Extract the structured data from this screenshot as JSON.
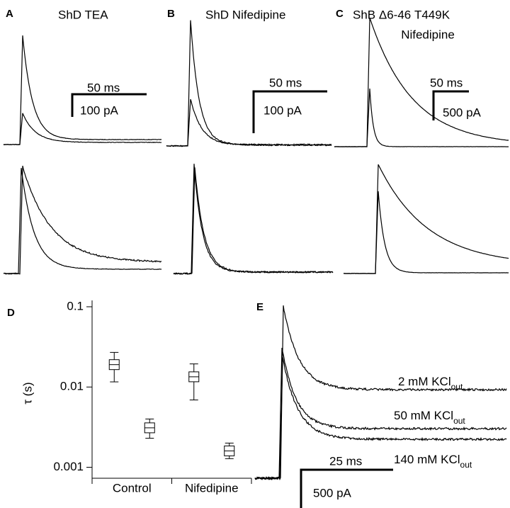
{
  "panels": {
    "a": {
      "label": "A",
      "title": "ShD TEA",
      "scale_time": "50 ms",
      "scale_current": "100 pA"
    },
    "b": {
      "label": "B",
      "title": "ShD Nifedipine",
      "scale_time": "50 ms",
      "scale_current": "100 pA"
    },
    "c": {
      "label": "C",
      "title": "ShB Δ6-46 T449K",
      "title2": "Nifedipine",
      "scale_time": "50 ms",
      "scale_current": "500 pA"
    },
    "e": {
      "label": "E",
      "scale_time": "25 ms",
      "scale_current": "500 pA",
      "traces": [
        {
          "label": "2 mM KCl",
          "subscript": "out"
        },
        {
          "label": "50 mM KCl",
          "subscript": "out"
        },
        {
          "label": "140 mM KCl",
          "subscript": "out"
        }
      ]
    }
  },
  "chart_data": {
    "type": "errorbar",
    "label": "D",
    "ylabel": "τ (s)",
    "categories": [
      "Control",
      "Nifedipine"
    ],
    "series": [
      {
        "values": [
          0.019,
          0.0134
        ],
        "upper": [
          0.027,
          0.0194
        ],
        "lower": [
          0.0116,
          0.0069
        ]
      },
      {
        "values": [
          0.0031,
          0.0016
        ],
        "upper": [
          0.004,
          0.002
        ],
        "lower": [
          0.0023,
          0.00128
        ]
      }
    ],
    "ylim": [
      0.00073,
      0.12
    ],
    "yticks": [
      0.1,
      0.01,
      0.001
    ],
    "log_scale": true
  }
}
